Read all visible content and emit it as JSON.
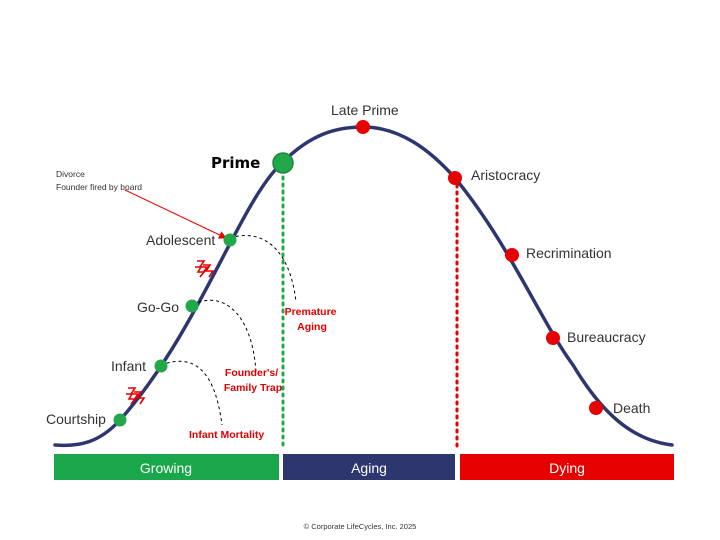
{
  "stages": {
    "courtship": "Courtship",
    "infant": "Infant",
    "gogo": "Go-Go",
    "adolescent": "Adolescent",
    "prime": "Prime",
    "late_prime": "Late Prime",
    "aristocracy": "Aristocracy",
    "recrimination": "Recrimination",
    "bureaucracy": "Bureaucracy",
    "death": "Death"
  },
  "traps": {
    "premature_aging": [
      "Premature",
      "Aging"
    ],
    "founders_trap": [
      "Founder's/",
      "Family Trap"
    ],
    "infant_mortality": "Infant Mortality"
  },
  "annotation": [
    "Divorce",
    "Founder fired by board"
  ],
  "bands": {
    "growing": "Growing",
    "aging": "Aging",
    "dying": "Dying"
  },
  "copyright": "© Corporate LifeCycles, Inc. 2025",
  "colors": {
    "curve": "#2e3670",
    "growth_dot": "#22a84a",
    "decline_dot": "#e60000",
    "growing_band": "#1aa64a",
    "aging_band": "#2e3670",
    "dying_band": "#e60000",
    "trap_text": "#e00000"
  }
}
